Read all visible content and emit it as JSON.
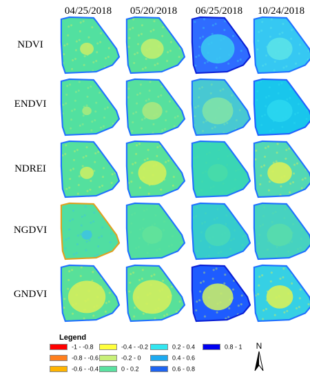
{
  "dates": [
    "04/25/2018",
    "05/20/2018",
    "06/25/2018",
    "10/24/2018"
  ],
  "indices": [
    "NDVI",
    "ENDVI",
    "NDREI",
    "NGDVI",
    "GNDVI"
  ],
  "maps": [
    [
      {
        "base": "#52e0a0",
        "patch": "#c4ec6a",
        "patch_size": 0.18,
        "edge": "#1f70ff"
      },
      {
        "base": "#58e09a",
        "patch": "#c0ee70",
        "patch_size": 0.35,
        "edge": "#1f70ff"
      },
      {
        "base": "#2f6cff",
        "patch": "#3ac6f2",
        "patch_size": 0.55,
        "edge": "#0a1fd6"
      },
      {
        "base": "#36c8f2",
        "patch": "#5ae2e8",
        "patch_size": 0.4,
        "edge": "#1f70ff"
      }
    ],
    [
      {
        "base": "#52e0a0",
        "patch": "#a6ea7e",
        "patch_size": 0.1,
        "edge": "#1f70ff"
      },
      {
        "base": "#56e09e",
        "patch": "#a8e880",
        "patch_size": 0.3,
        "edge": "#1f70ff"
      },
      {
        "base": "#48c8d2",
        "patch": "#7ee2a8",
        "patch_size": 0.5,
        "edge": "#1f70ff"
      },
      {
        "base": "#19c6ec",
        "patch": "#2ad6f0",
        "patch_size": 0.4,
        "edge": "#1f60ff"
      }
    ],
    [
      {
        "base": "#54e09e",
        "patch": "#c8ee66",
        "patch_size": 0.18,
        "edge": "#1f70ff"
      },
      {
        "base": "#58e09a",
        "patch": "#d0ef5c",
        "patch_size": 0.45,
        "edge": "#1f70ff"
      },
      {
        "base": "#3ad6b4",
        "patch": "#48dca8",
        "patch_size": 0.3,
        "edge": "#1f70ff"
      },
      {
        "base": "#52d8b4",
        "patch": "#d8ef5a",
        "patch_size": 0.38,
        "edge": "#1f70ff"
      }
    ],
    [
      {
        "base": "#50dea2",
        "patch": "#3ec4e0",
        "patch_size": 0.12,
        "edge": "#e0a020"
      },
      {
        "base": "#52dea0",
        "patch": "#62e29a",
        "patch_size": 0.3,
        "edge": "#1f70ff"
      },
      {
        "base": "#36cccc",
        "patch": "#48d8b8",
        "patch_size": 0.4,
        "edge": "#1f70ff"
      },
      {
        "base": "#46d2c0",
        "patch": "#58dcac",
        "patch_size": 0.4,
        "edge": "#1f70ff"
      }
    ],
    [
      {
        "base": "#58e09a",
        "patch": "#d4ee5c",
        "patch_size": 0.62,
        "edge": "#1f70ff"
      },
      {
        "base": "#58e09a",
        "patch": "#d2ee5e",
        "patch_size": 0.65,
        "edge": "#1f70ff"
      },
      {
        "base": "#1e5cff",
        "patch": "#c6ec6a",
        "patch_size": 0.5,
        "edge": "#0a1fd6"
      },
      {
        "base": "#36d0e4",
        "patch": "#d6ef5a",
        "patch_size": 0.42,
        "edge": "#1f70ff"
      }
    ]
  ],
  "legend": {
    "title": "Legend",
    "items": [
      {
        "label": "-1 - -0.8",
        "color": "#ff0000"
      },
      {
        "label": "-0.8 - -0.6",
        "color": "#ff7f1e"
      },
      {
        "label": "-0.6 - -0.4",
        "color": "#ffb400"
      },
      {
        "label": "-0.4 - -0.2",
        "color": "#ffff3c"
      },
      {
        "label": "-0.2 - 0",
        "color": "#c8f078"
      },
      {
        "label": "0 - 0.2",
        "color": "#5ae1a0"
      },
      {
        "label": "0.2 - 0.4",
        "color": "#32e6f0"
      },
      {
        "label": "0.4 - 0.6",
        "color": "#1eaaf0"
      },
      {
        "label": "0.6 - 0.8",
        "color": "#1e64f0"
      },
      {
        "label": "0.8 - 1",
        "color": "#0000f0"
      }
    ]
  },
  "north_label": "N"
}
